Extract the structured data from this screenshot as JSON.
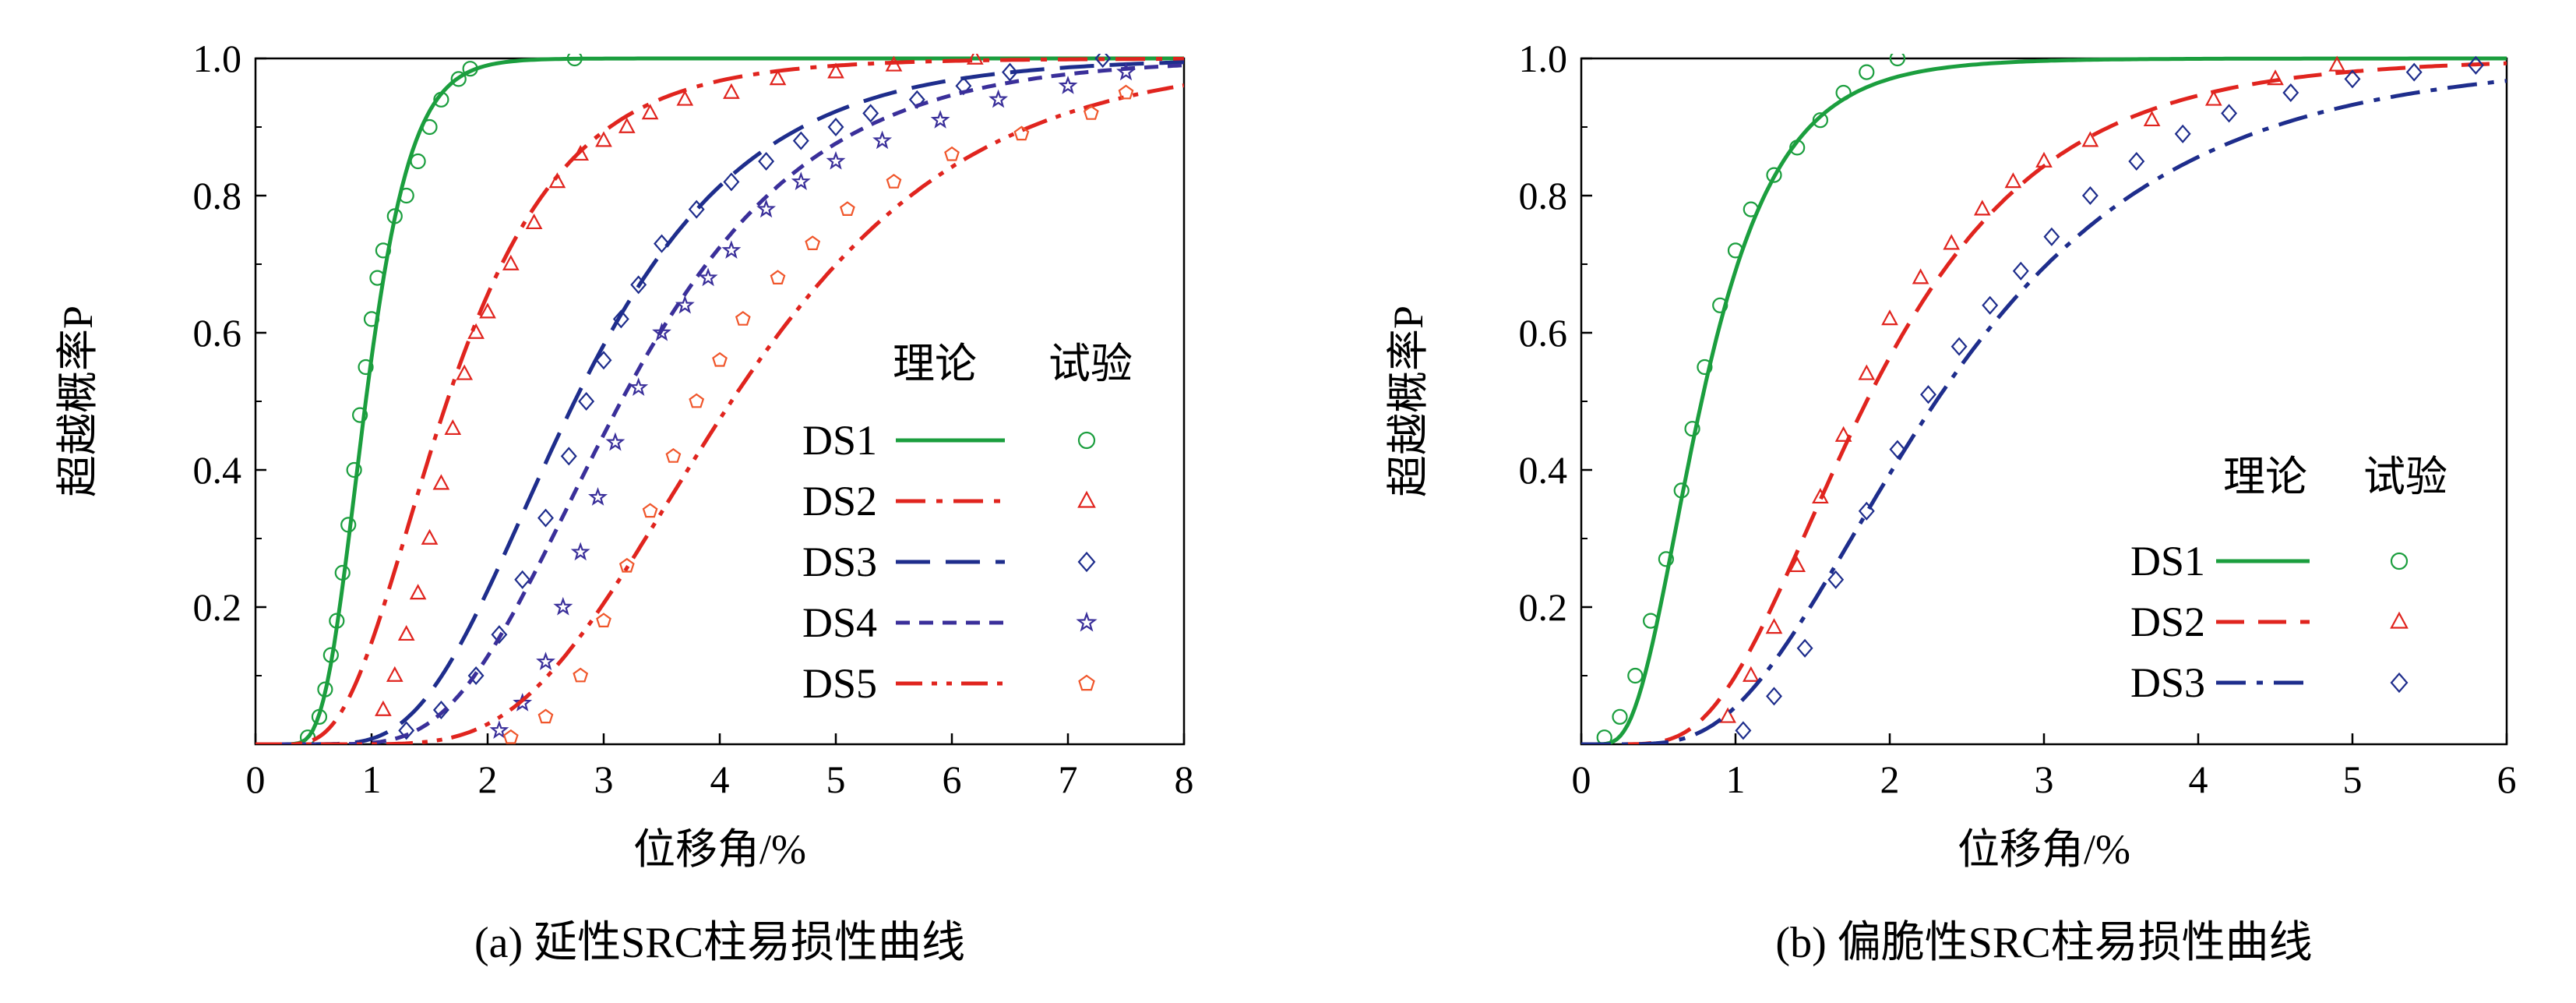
{
  "figure": {
    "captions": [
      "(a) 延性SRC柱易损性曲线",
      "(b) 偏脆性SRC柱易损性曲线"
    ]
  },
  "colors": {
    "green": "#1b9e3e",
    "red": "#e0241e",
    "navy": "#1e2d8c",
    "orange": "#f0562b",
    "blue_violet": "#3a2f9a"
  },
  "chart_data": [
    {
      "type": "line",
      "caption": "(a) 延性SRC柱易损性曲线",
      "xlabel": "位移角/%",
      "ylabel": "超越概率P",
      "xlim": [
        0,
        8
      ],
      "ylim": [
        0,
        1.0
      ],
      "x_ticks": [
        "0",
        "1",
        "2",
        "3",
        "4",
        "5",
        "6",
        "7",
        "8"
      ],
      "y_ticks": [
        "0.2",
        "0.4",
        "0.6",
        "0.8",
        "1.0"
      ],
      "grid": false,
      "legend_position": "center-right",
      "legend_headers": {
        "theory": "理论",
        "test": "试验"
      },
      "series": [
        {
          "name": "DS1",
          "curve": "lognormal CDF",
          "median": 0.95,
          "beta": 0.32,
          "line_style": "solid",
          "color": "green",
          "test_marker": "circle",
          "test_points": [
            [
              0.45,
              0.01
            ],
            [
              0.55,
              0.04
            ],
            [
              0.6,
              0.08
            ],
            [
              0.65,
              0.13
            ],
            [
              0.7,
              0.18
            ],
            [
              0.75,
              0.25
            ],
            [
              0.8,
              0.32
            ],
            [
              0.85,
              0.4
            ],
            [
              0.9,
              0.48
            ],
            [
              0.95,
              0.55
            ],
            [
              1.0,
              0.62
            ],
            [
              1.05,
              0.68
            ],
            [
              1.1,
              0.72
            ],
            [
              1.2,
              0.77
            ],
            [
              1.3,
              0.8
            ],
            [
              1.4,
              0.85
            ],
            [
              1.5,
              0.9
            ],
            [
              1.6,
              0.94
            ],
            [
              1.75,
              0.97
            ],
            [
              1.85,
              0.985
            ],
            [
              2.75,
              1.0
            ]
          ]
        },
        {
          "name": "DS2",
          "curve": "lognormal CDF",
          "median": 1.65,
          "beta": 0.48,
          "line_style": "dash-dot",
          "color": "red",
          "test_marker": "triangle",
          "test_points": [
            [
              1.1,
              0.05
            ],
            [
              1.2,
              0.1
            ],
            [
              1.3,
              0.16
            ],
            [
              1.4,
              0.22
            ],
            [
              1.5,
              0.3
            ],
            [
              1.6,
              0.38
            ],
            [
              1.7,
              0.46
            ],
            [
              1.8,
              0.54
            ],
            [
              1.9,
              0.6
            ],
            [
              2.0,
              0.63
            ],
            [
              2.2,
              0.7
            ],
            [
              2.4,
              0.76
            ],
            [
              2.6,
              0.82
            ],
            [
              2.8,
              0.86
            ],
            [
              3.0,
              0.88
            ],
            [
              3.2,
              0.9
            ],
            [
              3.4,
              0.92
            ],
            [
              3.7,
              0.94
            ],
            [
              4.1,
              0.95
            ],
            [
              4.5,
              0.97
            ],
            [
              5.0,
              0.98
            ],
            [
              5.5,
              0.99
            ],
            [
              6.2,
              1.0
            ]
          ]
        },
        {
          "name": "DS3",
          "curve": "lognormal CDF",
          "median": 2.75,
          "beta": 0.42,
          "line_style": "long-dash",
          "color": "navy",
          "test_marker": "diamond",
          "test_points": [
            [
              1.3,
              0.02
            ],
            [
              1.6,
              0.05
            ],
            [
              1.9,
              0.1
            ],
            [
              2.1,
              0.16
            ],
            [
              2.3,
              0.24
            ],
            [
              2.5,
              0.33
            ],
            [
              2.7,
              0.42
            ],
            [
              2.85,
              0.5
            ],
            [
              3.0,
              0.56
            ],
            [
              3.15,
              0.62
            ],
            [
              3.3,
              0.67
            ],
            [
              3.5,
              0.73
            ],
            [
              3.8,
              0.78
            ],
            [
              4.1,
              0.82
            ],
            [
              4.4,
              0.85
            ],
            [
              4.7,
              0.88
            ],
            [
              5.0,
              0.9
            ],
            [
              5.3,
              0.92
            ],
            [
              5.7,
              0.94
            ],
            [
              6.1,
              0.96
            ],
            [
              6.5,
              0.98
            ],
            [
              7.3,
              1.0
            ]
          ]
        },
        {
          "name": "DS4",
          "curve": "lognormal CDF",
          "median": 3.15,
          "beta": 0.4,
          "line_style": "short-dash",
          "color": "blue_violet",
          "test_marker": "star",
          "test_points": [
            [
              2.1,
              0.02
            ],
            [
              2.3,
              0.06
            ],
            [
              2.5,
              0.12
            ],
            [
              2.65,
              0.2
            ],
            [
              2.8,
              0.28
            ],
            [
              2.95,
              0.36
            ],
            [
              3.1,
              0.44
            ],
            [
              3.3,
              0.52
            ],
            [
              3.5,
              0.6
            ],
            [
              3.7,
              0.64
            ],
            [
              3.9,
              0.68
            ],
            [
              4.1,
              0.72
            ],
            [
              4.4,
              0.78
            ],
            [
              4.7,
              0.82
            ],
            [
              5.0,
              0.85
            ],
            [
              5.4,
              0.88
            ],
            [
              5.9,
              0.91
            ],
            [
              6.4,
              0.94
            ],
            [
              7.0,
              0.96
            ],
            [
              7.5,
              0.98
            ]
          ]
        },
        {
          "name": "DS5",
          "curve": "lognormal CDF",
          "median": 4.1,
          "beta": 0.38,
          "line_style": "dash-dot-dot",
          "color": "red",
          "test_marker": "pentagon",
          "test_color": "orange",
          "test_points": [
            [
              2.2,
              0.01
            ],
            [
              2.5,
              0.04
            ],
            [
              2.8,
              0.1
            ],
            [
              3.0,
              0.18
            ],
            [
              3.2,
              0.26
            ],
            [
              3.4,
              0.34
            ],
            [
              3.6,
              0.42
            ],
            [
              3.8,
              0.5
            ],
            [
              4.0,
              0.56
            ],
            [
              4.2,
              0.62
            ],
            [
              4.5,
              0.68
            ],
            [
              4.8,
              0.73
            ],
            [
              5.1,
              0.78
            ],
            [
              5.5,
              0.82
            ],
            [
              6.0,
              0.86
            ],
            [
              6.6,
              0.89
            ],
            [
              7.2,
              0.92
            ],
            [
              7.5,
              0.95
            ]
          ]
        }
      ]
    },
    {
      "type": "line",
      "caption": "(b) 偏脆性SRC柱易损性曲线",
      "xlabel": "位移角/%",
      "ylabel": "超越概率P",
      "xlim": [
        0,
        6
      ],
      "ylim": [
        0,
        1.0
      ],
      "x_ticks": [
        "0",
        "1",
        "2",
        "3",
        "4",
        "5",
        "6"
      ],
      "y_ticks": [
        "0.2",
        "0.4",
        "0.6",
        "0.8",
        "1.0"
      ],
      "grid": false,
      "legend_position": "bottom-right",
      "legend_headers": {
        "theory": "理论",
        "test": "试验"
      },
      "series": [
        {
          "name": "DS1",
          "curve": "lognormal CDF",
          "median": 0.78,
          "beta": 0.5,
          "line_style": "solid",
          "color": "green",
          "test_marker": "circle",
          "test_points": [
            [
              0.15,
              0.01
            ],
            [
              0.25,
              0.04
            ],
            [
              0.35,
              0.1
            ],
            [
              0.45,
              0.18
            ],
            [
              0.55,
              0.27
            ],
            [
              0.65,
              0.37
            ],
            [
              0.72,
              0.46
            ],
            [
              0.8,
              0.55
            ],
            [
              0.9,
              0.64
            ],
            [
              1.0,
              0.72
            ],
            [
              1.1,
              0.78
            ],
            [
              1.25,
              0.83
            ],
            [
              1.4,
              0.87
            ],
            [
              1.55,
              0.91
            ],
            [
              1.7,
              0.95
            ],
            [
              1.85,
              0.98
            ],
            [
              2.05,
              1.0
            ]
          ]
        },
        {
          "name": "DS2",
          "curve": "lognormal CDF",
          "median": 1.85,
          "beta": 0.48,
          "line_style": "dashed",
          "color": "red",
          "test_marker": "triangle",
          "test_points": [
            [
              0.95,
              0.04
            ],
            [
              1.1,
              0.1
            ],
            [
              1.25,
              0.17
            ],
            [
              1.4,
              0.26
            ],
            [
              1.55,
              0.36
            ],
            [
              1.7,
              0.45
            ],
            [
              1.85,
              0.54
            ],
            [
              2.0,
              0.62
            ],
            [
              2.2,
              0.68
            ],
            [
              2.4,
              0.73
            ],
            [
              2.6,
              0.78
            ],
            [
              2.8,
              0.82
            ],
            [
              3.0,
              0.85
            ],
            [
              3.3,
              0.88
            ],
            [
              3.7,
              0.91
            ],
            [
              4.1,
              0.94
            ],
            [
              4.5,
              0.97
            ],
            [
              4.9,
              0.99
            ]
          ]
        },
        {
          "name": "DS3",
          "curve": "lognormal CDF",
          "median": 2.3,
          "beta": 0.52,
          "line_style": "dash-dot",
          "color": "navy",
          "test_marker": "diamond",
          "test_points": [
            [
              1.05,
              0.02
            ],
            [
              1.25,
              0.07
            ],
            [
              1.45,
              0.14
            ],
            [
              1.65,
              0.24
            ],
            [
              1.85,
              0.34
            ],
            [
              2.05,
              0.43
            ],
            [
              2.25,
              0.51
            ],
            [
              2.45,
              0.58
            ],
            [
              2.65,
              0.64
            ],
            [
              2.85,
              0.69
            ],
            [
              3.05,
              0.74
            ],
            [
              3.3,
              0.8
            ],
            [
              3.6,
              0.85
            ],
            [
              3.9,
              0.89
            ],
            [
              4.2,
              0.92
            ],
            [
              4.6,
              0.95
            ],
            [
              5.0,
              0.97
            ],
            [
              5.4,
              0.98
            ],
            [
              5.8,
              0.99
            ]
          ]
        }
      ]
    }
  ]
}
